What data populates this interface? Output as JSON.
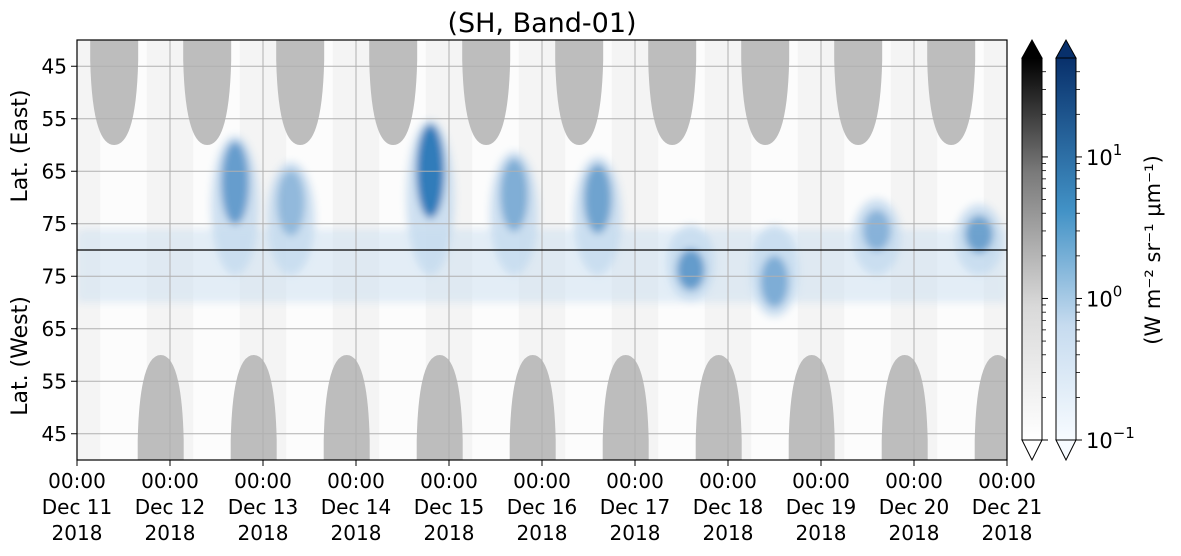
{
  "chart_data": {
    "type": "heatmap",
    "title": "(SH, Band-01)",
    "ylabel_top": "Lat. (East)",
    "ylabel_bottom": "Lat. (West)",
    "y_ticks_top": [
      "45",
      "55",
      "65",
      "75"
    ],
    "y_ticks_bottom": [
      "75",
      "65",
      "55",
      "45"
    ],
    "x_tick_labels": [
      [
        "00:00",
        "Dec 11",
        "2018"
      ],
      [
        "00:00",
        "Dec 12",
        "2018"
      ],
      [
        "00:00",
        "Dec 13",
        "2018"
      ],
      [
        "00:00",
        "Dec 14",
        "2018"
      ],
      [
        "00:00",
        "Dec 15",
        "2018"
      ],
      [
        "00:00",
        "Dec 16",
        "2018"
      ],
      [
        "00:00",
        "Dec 17",
        "2018"
      ],
      [
        "00:00",
        "Dec 18",
        "2018"
      ],
      [
        "00:00",
        "Dec 19",
        "2018"
      ],
      [
        "00:00",
        "Dec 20",
        "2018"
      ],
      [
        "00:00",
        "Dec 21",
        "2018"
      ]
    ],
    "x_range_days": [
      11,
      21
    ],
    "colorbar": {
      "label": "(W m⁻² sr⁻¹ μm⁻¹)",
      "scale": "log",
      "range": [
        0.1,
        50
      ],
      "ticks": [
        {
          "value": 0.1,
          "base": "10",
          "exp": "−1"
        },
        {
          "value": 1,
          "base": "10",
          "exp": "0"
        },
        {
          "value": 10,
          "base": "10",
          "exp": "1"
        }
      ],
      "colormaps": [
        "Greys",
        "Blues"
      ],
      "extend": "both"
    },
    "day_peaks": [
      {
        "day": 12.7,
        "lat_east": 63,
        "intensity": 0.6
      },
      {
        "day": 13.3,
        "lat_east": 68,
        "intensity": 0.35
      },
      {
        "day": 14.8,
        "lat_east": 60,
        "intensity": 0.9
      },
      {
        "day": 15.7,
        "lat_east": 66,
        "intensity": 0.45
      },
      {
        "day": 16.6,
        "lat_east": 67,
        "intensity": 0.55
      },
      {
        "day": 17.6,
        "lat_west": 75,
        "intensity": 0.6
      },
      {
        "day": 18.5,
        "lat_west": 72,
        "intensity": 0.45
      },
      {
        "day": 19.6,
        "lat_east": 75,
        "intensity": 0.4
      },
      {
        "day": 20.7,
        "lat_east": 76,
        "intensity": 0.55
      }
    ],
    "colors": {
      "grey_shade": "#bdbdbd",
      "grid": "#b0b0b0",
      "blue_dark": "#08306b",
      "blue_mid": "#2171b5",
      "blue_light": "#c6dbef"
    }
  }
}
